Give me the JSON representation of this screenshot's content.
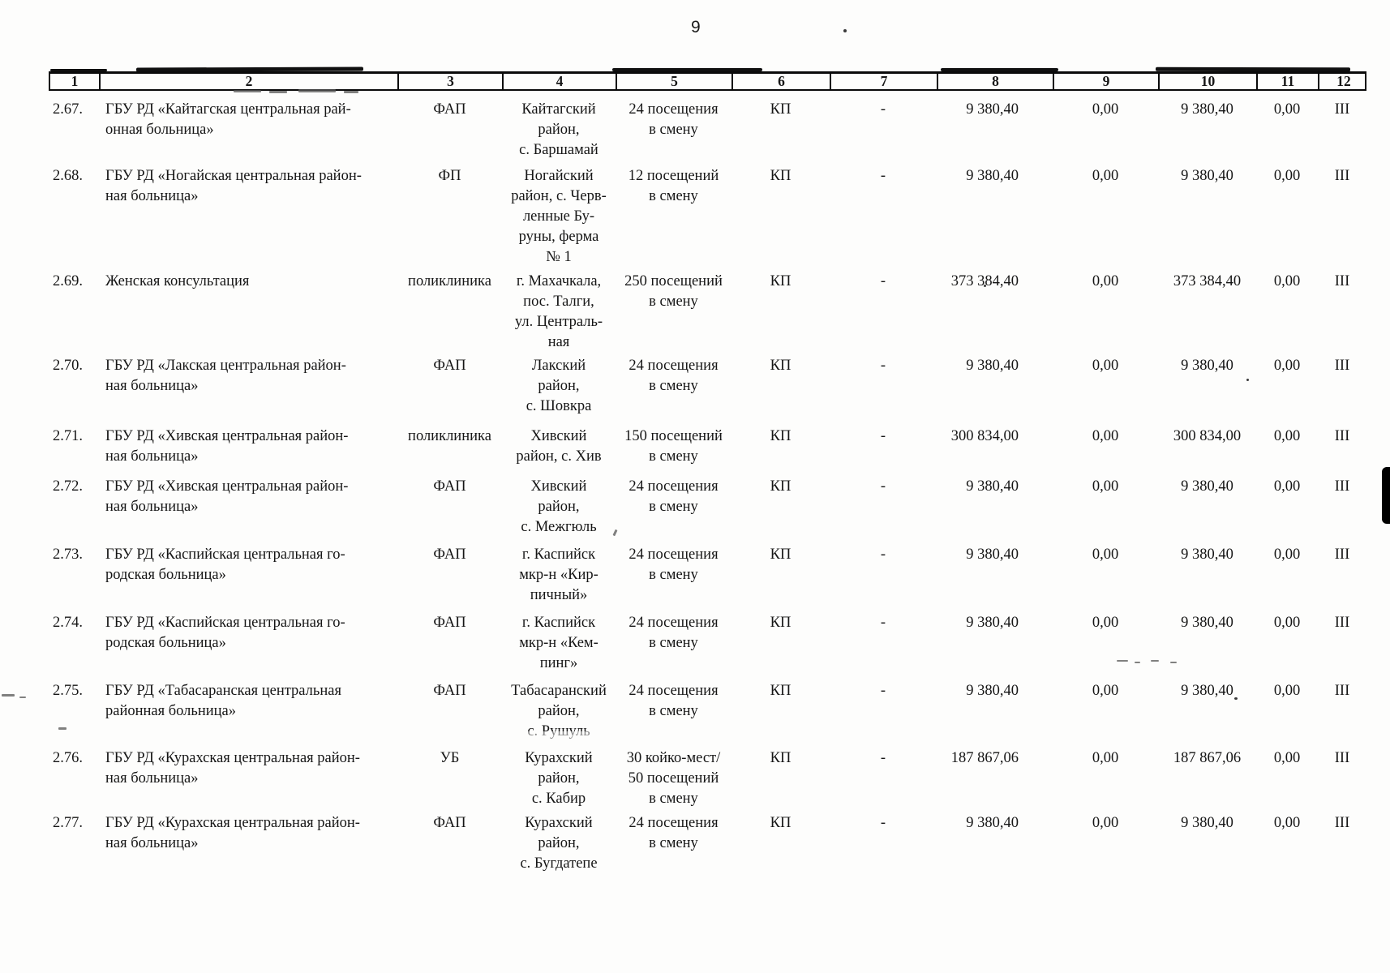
{
  "page": {
    "number": "9"
  },
  "table": {
    "header": [
      "1",
      "2",
      "3",
      "4",
      "5",
      "6",
      "7",
      "8",
      "9",
      "10",
      "11",
      "12"
    ],
    "rows": [
      {
        "cells": [
          "2.67.",
          "ГБУ РД «Кайтагская центральная рай-\nонная больница»",
          "ФАП",
          "Кайтагский\nрайон,\nс. Баршамай",
          "24 посещения\nв смену",
          "КП",
          "-",
          "9 380,40",
          "0,00",
          "9 380,40",
          "0,00",
          "III"
        ]
      },
      {
        "cells": [
          "2.68.",
          "ГБУ РД «Ногайская центральная район-\nная больница»",
          "ФП",
          "Ногайский\nрайон, с. Черв-\nленные Бу-\nруны, ферма\n№ 1",
          "12 посещений\nв смену",
          "КП",
          "-",
          "9 380,40",
          "0,00",
          "9 380,40",
          "0,00",
          "III"
        ]
      },
      {
        "cells": [
          "2.69.",
          "Женская консультация",
          "поликлиника",
          "г. Махачкала,\nпос. Талги,\nул. Централь-\nная",
          "250 посещений\nв смену",
          "КП",
          "-",
          "373 384,40",
          "0,00",
          "373 384,40",
          "0,00",
          "III"
        ]
      },
      {
        "cells": [
          "2.70.",
          "ГБУ РД «Лакская центральная район-\nная больница»",
          "ФАП",
          "Лакский\nрайон,\nс. Шовкра",
          "24 посещения\nв смену",
          "КП",
          "-",
          "9 380,40",
          "0,00",
          "9 380,40",
          "0,00",
          "III"
        ]
      },
      {
        "cells": [
          "2.71.",
          "ГБУ РД «Хивская центральная район-\nная больница»",
          "поликлиника",
          "Хивский\nрайон, с. Хив",
          "150 посещений\nв смену",
          "КП",
          "-",
          "300 834,00",
          "0,00",
          "300 834,00",
          "0,00",
          "III"
        ]
      },
      {
        "cells": [
          "2.72.",
          "ГБУ РД «Хивская центральная район-\nная больница»",
          "ФАП",
          "Хивский\nрайон,\nс. Межгюль",
          "24 посещения\nв смену",
          "КП",
          "-",
          "9 380,40",
          "0,00",
          "9 380,40",
          "0,00",
          "III"
        ]
      },
      {
        "cells": [
          "2.73.",
          "ГБУ РД «Каспийская центральная го-\nродская больница»",
          "ФАП",
          "г. Каспийск\nмкр-н «Кир-\nпичный»",
          "24 посещения\nв смену",
          "КП",
          "-",
          "9 380,40",
          "0,00",
          "9 380,40",
          "0,00",
          "III"
        ]
      },
      {
        "cells": [
          "2.74.",
          "ГБУ РД «Каспийская центральная го-\nродская больница»",
          "ФАП",
          "г. Каспийск\nмкр-н «Кем-\nпинг»",
          "24 посещения\nв смену",
          "КП",
          "-",
          "9 380,40",
          "0,00",
          "9 380,40",
          "0,00",
          "III"
        ]
      },
      {
        "cells": [
          "2.75.",
          "ГБУ РД «Табасаранская центральная\nрайонная больница»",
          "ФАП",
          "Табасаранский\nрайон,\nс. Рушуль",
          "24 посещения\nв смену",
          "КП",
          "-",
          "9 380,40",
          "0,00",
          "9 380,40",
          "0,00",
          "III"
        ]
      },
      {
        "cells": [
          "2.76.",
          "ГБУ РД «Курахская центральная район-\nная больница»",
          "УБ",
          "Курахский\nрайон,\nс. Кабир",
          "30 койко-мест/\n50 посещений\nв смену",
          "КП",
          "-",
          "187 867,06",
          "0,00",
          "187 867,06",
          "0,00",
          "III"
        ]
      },
      {
        "cells": [
          "2.77.",
          "ГБУ РД «Курахская центральная район-\nная больница»",
          "ФАП",
          "Курахский\nрайон,\nс. Бугдатепе",
          "24 посещения\nв смену",
          "КП",
          "-",
          "9 380,40",
          "0,00",
          "9 380,40",
          "0,00",
          "III"
        ]
      }
    ]
  }
}
